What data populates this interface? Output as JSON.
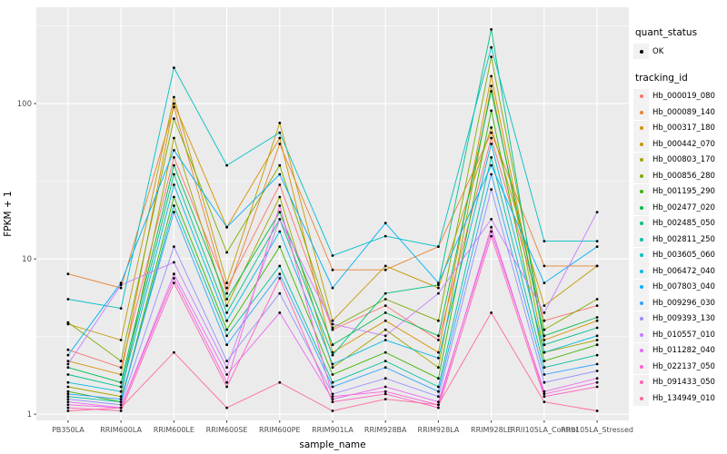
{
  "legend": {
    "quant_status_title": "quant_status",
    "quant_status_items": [
      "OK"
    ],
    "quant_status_marker_color": "#000000",
    "tracking_id_title": "tracking_id"
  },
  "chart_data": {
    "type": "line",
    "title": "",
    "xlabel": "sample_name",
    "ylabel": "FPKM + 1",
    "y_scale": "log10",
    "ylim": [
      0.9,
      380
    ],
    "y_ticks_major": [
      1,
      10,
      100
    ],
    "y_tick_labels": [
      "1",
      "10",
      "100"
    ],
    "y_ticks_minor": [
      3.162,
      31.623,
      316.23
    ],
    "grid": "on",
    "panel_background": "#EBEBEB",
    "grid_color": "#FFFFFF",
    "point_color": "#000000",
    "legend_position": "right",
    "x_categories": [
      "PB350LA",
      "RRIM600LA",
      "RRIM600LE",
      "RRIM600SE",
      "RRIM600PE",
      "RRIM901LA",
      "RRIM928BA",
      "RRIM928LA",
      "RRIM928LE",
      "RRII105LA_Control",
      "RRII105LA_Stressed"
    ],
    "series": [
      {
        "name": "Hb_000019_080",
        "color": "#F8766D",
        "values": [
          2.6,
          2.0,
          45,
          6.5,
          30,
          3.5,
          5.0,
          3.0,
          60,
          4.0,
          5.0
        ]
      },
      {
        "name": "Hb_000089_140",
        "color": "#EA8331",
        "values": [
          8.0,
          6.5,
          95,
          6.0,
          55,
          8.5,
          8.5,
          12,
          65,
          9.0,
          9.0
        ]
      },
      {
        "name": "Hb_000317_180",
        "color": "#D89000",
        "values": [
          2.2,
          1.8,
          100,
          16,
          60,
          2.5,
          4.0,
          2.5,
          150,
          3.0,
          4.0
        ]
      },
      {
        "name": "Hb_000442_070",
        "color": "#C09B00",
        "values": [
          3.8,
          3.0,
          110,
          7.0,
          75,
          4.0,
          9.0,
          6.5,
          70,
          5.0,
          9.0
        ]
      },
      {
        "name": "Hb_000803_170",
        "color": "#A3A500",
        "values": [
          1.5,
          1.3,
          60,
          5.0,
          25,
          2.0,
          3.5,
          2.0,
          130,
          2.5,
          3.0
        ]
      },
      {
        "name": "Hb_000856_280",
        "color": "#7CAE00",
        "values": [
          3.9,
          2.2,
          80,
          11,
          40,
          3.6,
          5.5,
          4.0,
          200,
          3.5,
          5.5
        ]
      },
      {
        "name": "Hb_001195_290",
        "color": "#39B600",
        "values": [
          1.4,
          1.2,
          25,
          3.5,
          12,
          1.8,
          2.5,
          1.7,
          90,
          2.2,
          2.8
        ]
      },
      {
        "name": "Hb_002477_020",
        "color": "#00BB4E",
        "values": [
          2.0,
          1.6,
          40,
          5.5,
          20,
          2.8,
          4.5,
          3.2,
          120,
          3.2,
          4.2
        ]
      },
      {
        "name": "Hb_002485_050",
        "color": "#00C087",
        "values": [
          1.8,
          1.5,
          35,
          4.5,
          18,
          2.4,
          6.0,
          6.8,
          300,
          2.8,
          3.6
        ]
      },
      {
        "name": "Hb_002811_250",
        "color": "#00C1A3",
        "values": [
          1.3,
          1.2,
          22,
          3.2,
          9.0,
          1.6,
          2.2,
          1.5,
          45,
          2.0,
          2.4
        ]
      },
      {
        "name": "Hb_003605_060",
        "color": "#00BFC4",
        "values": [
          5.5,
          4.8,
          170,
          40,
          65,
          10.5,
          14,
          12,
          230,
          13,
          13
        ]
      },
      {
        "name": "Hb_006472_040",
        "color": "#00BAE0",
        "values": [
          1.6,
          1.4,
          30,
          4.0,
          15,
          2.1,
          3.0,
          2.3,
          55,
          2.5,
          3.2
        ]
      },
      {
        "name": "Hb_007803_040",
        "color": "#00B0F6",
        "values": [
          2.4,
          7.0,
          50,
          16,
          35,
          6.5,
          17,
          7.0,
          40,
          7.0,
          12
        ]
      },
      {
        "name": "Hb_009296_030",
        "color": "#35A2FF",
        "values": [
          1.35,
          1.25,
          20,
          2.8,
          8.0,
          1.5,
          2.0,
          1.4,
          35,
          1.8,
          2.1
        ]
      },
      {
        "name": "Hb_009393_130",
        "color": "#9590FF",
        "values": [
          1.25,
          1.15,
          12,
          2.2,
          6.0,
          1.35,
          1.7,
          1.3,
          28,
          1.6,
          1.9
        ]
      },
      {
        "name": "Hb_010557_010",
        "color": "#C77CFF",
        "values": [
          2.1,
          6.8,
          9.5,
          2.0,
          18,
          3.8,
          3.2,
          6.0,
          18,
          4.5,
          20
        ]
      },
      {
        "name": "Hb_011282_040",
        "color": "#E76BF3",
        "values": [
          1.2,
          1.1,
          8.0,
          1.8,
          4.5,
          1.25,
          1.5,
          1.2,
          15,
          1.4,
          1.7
        ]
      },
      {
        "name": "Hb_022137_050",
        "color": "#FA62DB",
        "values": [
          1.15,
          1.1,
          7.5,
          1.6,
          22,
          1.3,
          1.4,
          1.15,
          16,
          1.35,
          1.6
        ]
      },
      {
        "name": "Hb_091433_050",
        "color": "#FF62BC",
        "values": [
          1.1,
          1.05,
          7.0,
          1.5,
          7.5,
          1.2,
          1.35,
          1.1,
          14,
          1.3,
          1.5
        ]
      },
      {
        "name": "Hb_134949_010",
        "color": "#FF6A98",
        "values": [
          1.05,
          1.1,
          2.5,
          1.1,
          1.6,
          1.05,
          1.25,
          1.15,
          4.5,
          1.2,
          1.05
        ]
      }
    ]
  }
}
